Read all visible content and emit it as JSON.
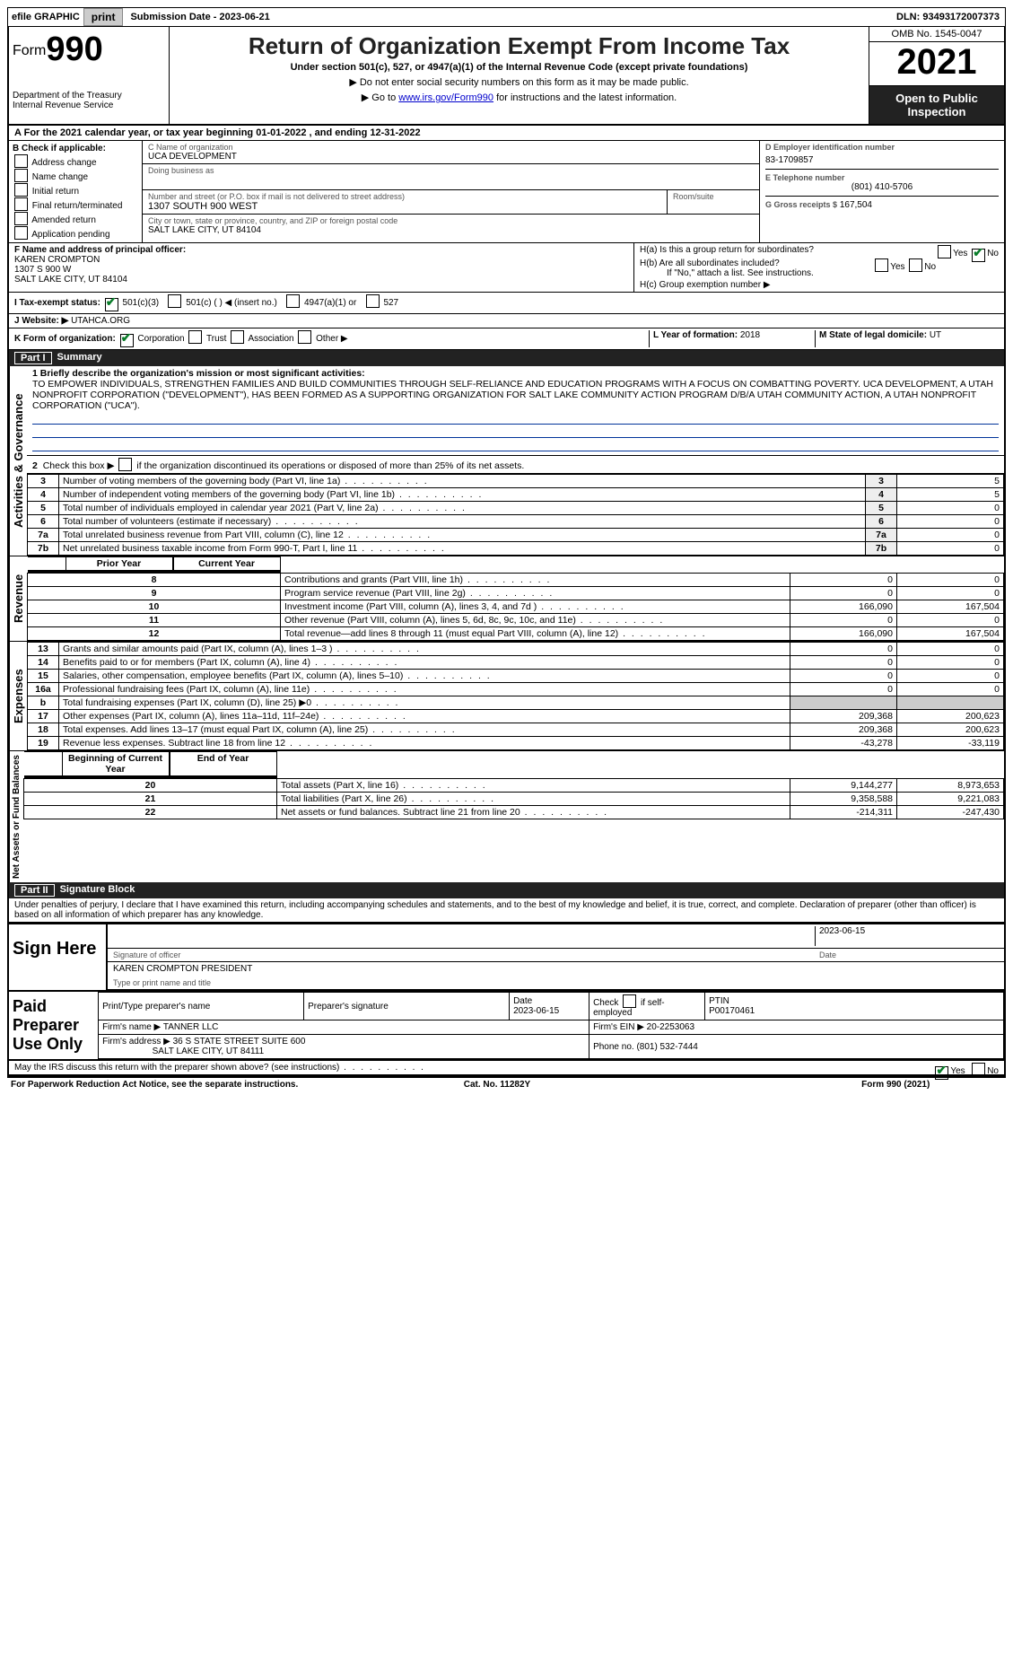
{
  "topbar": {
    "efile": "efile GRAPHIC",
    "print": "print",
    "submission_label": "Submission Date - ",
    "submission_date": "2023-06-21",
    "dln_label": "DLN: ",
    "dln": "93493172007373"
  },
  "header": {
    "form_word": "Form",
    "form_num": "990",
    "dept": "Department of the Treasury",
    "irs": "Internal Revenue Service",
    "title": "Return of Organization Exempt From Income Tax",
    "subtitle": "Under section 501(c), 527, or 4947(a)(1) of the Internal Revenue Code (except private foundations)",
    "note1": "▶ Do not enter social security numbers on this form as it may be made public.",
    "note2_a": "▶ Go to ",
    "note2_link": "www.irs.gov/Form990",
    "note2_b": " for instructions and the latest information.",
    "omb": "OMB No. 1545-0047",
    "year": "2021",
    "open": "Open to Public Inspection"
  },
  "A": {
    "text_a": "For the 2021 calendar year, or tax year beginning ",
    "begin": "01-01-2022",
    "text_b": " , and ending ",
    "end": "12-31-2022"
  },
  "B": {
    "label": "B Check if applicable:",
    "items": [
      "Address change",
      "Name change",
      "Initial return",
      "Final return/terminated",
      "Amended return",
      "Application pending"
    ]
  },
  "C": {
    "name_label": "C Name of organization",
    "name": "UCA DEVELOPMENT",
    "dba_label": "Doing business as",
    "dba": "",
    "addr_label": "Number and street (or P.O. box if mail is not delivered to street address)",
    "addr": "1307 SOUTH 900 WEST",
    "room_label": "Room/suite",
    "city_label": "City or town, state or province, country, and ZIP or foreign postal code",
    "city": "SALT LAKE CITY, UT  84104"
  },
  "D": {
    "label": "D Employer identification number",
    "value": "83-1709857"
  },
  "E": {
    "label": "E Telephone number",
    "value": "(801) 410-5706"
  },
  "G": {
    "label": "G Gross receipts $",
    "value": "167,504"
  },
  "F": {
    "label": "F  Name and address of principal officer:",
    "name": "KAREN CROMPTON",
    "addr1": "1307 S 900 W",
    "addr2": "SALT LAKE CITY, UT  84104"
  },
  "H": {
    "a": "H(a)  Is this a group return for subordinates?",
    "b": "H(b)  Are all subordinates included?",
    "bnote": "If \"No,\" attach a list. See instructions.",
    "c": "H(c)  Group exemption number ▶",
    "yes": "Yes",
    "no": "No"
  },
  "I": {
    "label": "I   Tax-exempt status:",
    "o1": "501(c)(3)",
    "o2": "501(c) (  ) ◀ (insert no.)",
    "o3": "4947(a)(1) or",
    "o4": "527"
  },
  "J": {
    "label": "J   Website: ▶ ",
    "value": "UTAHCA.ORG"
  },
  "K": {
    "label": "K Form of organization:",
    "o1": "Corporation",
    "o2": "Trust",
    "o3": "Association",
    "o4": "Other ▶"
  },
  "L": {
    "label": "L Year of formation: ",
    "value": "2018"
  },
  "M": {
    "label": "M State of legal domicile: ",
    "value": "UT"
  },
  "part1": {
    "no": "Part I",
    "title": "Summary"
  },
  "mission": {
    "q": "1  Briefly describe the organization's mission or most significant activities:",
    "text": "TO EMPOWER INDIVIDUALS, STRENGTHEN FAMILIES AND BUILD COMMUNITIES THROUGH SELF-RELIANCE AND EDUCATION PROGRAMS WITH A FOCUS ON COMBATTING POVERTY. UCA DEVELOPMENT, A UTAH NONPROFIT CORPORATION (\"DEVELOPMENT\"), HAS BEEN FORMED AS A SUPPORTING ORGANIZATION FOR SALT LAKE COMMUNITY ACTION PROGRAM D/B/A UTAH COMMUNITY ACTION, A UTAH NONPROFIT CORPORATION (\"UCA\")."
  },
  "gov": {
    "section": "Activities & Governance",
    "l2": "Check this box ▶        if the organization discontinued its operations or disposed of more than 25% of its net assets.",
    "rows": [
      {
        "n": "3",
        "t": "Number of voting members of the governing body (Part VI, line 1a)",
        "v": "5"
      },
      {
        "n": "4",
        "t": "Number of independent voting members of the governing body (Part VI, line 1b)",
        "v": "5"
      },
      {
        "n": "5",
        "t": "Total number of individuals employed in calendar year 2021 (Part V, line 2a)",
        "v": "0"
      },
      {
        "n": "6",
        "t": "Total number of volunteers (estimate if necessary)",
        "v": "0"
      },
      {
        "n": "7a",
        "t": "Total unrelated business revenue from Part VIII, column (C), line 12",
        "v": "0"
      },
      {
        "n": "7b",
        "t": "Net unrelated business taxable income from Form 990-T, Part I, line 11",
        "v": "0"
      }
    ]
  },
  "yearhdr": {
    "prior": "Prior Year",
    "current": "Current Year"
  },
  "rev": {
    "section": "Revenue",
    "rows": [
      {
        "n": "8",
        "t": "Contributions and grants (Part VIII, line 1h)",
        "p": "0",
        "c": "0"
      },
      {
        "n": "9",
        "t": "Program service revenue (Part VIII, line 2g)",
        "p": "0",
        "c": "0"
      },
      {
        "n": "10",
        "t": "Investment income (Part VIII, column (A), lines 3, 4, and 7d )",
        "p": "166,090",
        "c": "167,504"
      },
      {
        "n": "11",
        "t": "Other revenue (Part VIII, column (A), lines 5, 6d, 8c, 9c, 10c, and 11e)",
        "p": "0",
        "c": "0"
      },
      {
        "n": "12",
        "t": "Total revenue—add lines 8 through 11 (must equal Part VIII, column (A), line 12)",
        "p": "166,090",
        "c": "167,504"
      }
    ]
  },
  "exp": {
    "section": "Expenses",
    "rows": [
      {
        "n": "13",
        "t": "Grants and similar amounts paid (Part IX, column (A), lines 1–3 )",
        "p": "0",
        "c": "0"
      },
      {
        "n": "14",
        "t": "Benefits paid to or for members (Part IX, column (A), line 4)",
        "p": "0",
        "c": "0"
      },
      {
        "n": "15",
        "t": "Salaries, other compensation, employee benefits (Part IX, column (A), lines 5–10)",
        "p": "0",
        "c": "0"
      },
      {
        "n": "16a",
        "t": "Professional fundraising fees (Part IX, column (A), line 11e)",
        "p": "0",
        "c": "0"
      },
      {
        "n": "b",
        "t": "Total fundraising expenses (Part IX, column (D), line 25) ▶0",
        "p": "",
        "c": "",
        "shade": true
      },
      {
        "n": "17",
        "t": "Other expenses (Part IX, column (A), lines 11a–11d, 11f–24e)",
        "p": "209,368",
        "c": "200,623"
      },
      {
        "n": "18",
        "t": "Total expenses. Add lines 13–17 (must equal Part IX, column (A), line 25)",
        "p": "209,368",
        "c": "200,623"
      },
      {
        "n": "19",
        "t": "Revenue less expenses. Subtract line 18 from line 12",
        "p": "-43,278",
        "c": "-33,119"
      }
    ]
  },
  "net": {
    "section": "Net Assets or Fund Balances",
    "hdr": {
      "p": "Beginning of Current Year",
      "c": "End of Year"
    },
    "rows": [
      {
        "n": "20",
        "t": "Total assets (Part X, line 16)",
        "p": "9,144,277",
        "c": "8,973,653"
      },
      {
        "n": "21",
        "t": "Total liabilities (Part X, line 26)",
        "p": "9,358,588",
        "c": "9,221,083"
      },
      {
        "n": "22",
        "t": "Net assets or fund balances. Subtract line 21 from line 20",
        "p": "-214,311",
        "c": "-247,430"
      }
    ]
  },
  "part2": {
    "no": "Part II",
    "title": "Signature Block"
  },
  "penalty": "Under penalties of perjury, I declare that I have examined this return, including accompanying schedules and statements, and to the best of my knowledge and belief, it is true, correct, and complete. Declaration of preparer (other than officer) is based on all information of which preparer has any knowledge.",
  "sign": {
    "label": "Sign Here",
    "sig_label": "Signature of officer",
    "date": "2023-06-15",
    "date_label": "Date",
    "name": "KAREN CROMPTON  PRESIDENT",
    "name_label": "Type or print name and title"
  },
  "prep": {
    "label": "Paid Preparer Use Only",
    "h1": "Print/Type preparer's name",
    "h2": "Preparer's signature",
    "h3": "Date",
    "d3": "2023-06-15",
    "h4": "Check        if self-employed",
    "h5": "PTIN",
    "ptin": "P00170461",
    "firm_label": "Firm's name    ▶ ",
    "firm": "TANNER LLC",
    "ein_label": "Firm's EIN ▶ ",
    "ein": "20-2253063",
    "addr_label": "Firm's address ▶ ",
    "addr1": "36 S STATE STREET SUITE 600",
    "addr2": "SALT LAKE CITY, UT  84111",
    "phone_label": "Phone no. ",
    "phone": "(801) 532-7444"
  },
  "discuss": {
    "q": "May the IRS discuss this return with the preparer shown above? (see instructions)",
    "yes": "Yes",
    "no": "No"
  },
  "foot": {
    "l": "For Paperwork Reduction Act Notice, see the separate instructions.",
    "m": "Cat. No. 11282Y",
    "r": "Form 990 (2021)"
  }
}
